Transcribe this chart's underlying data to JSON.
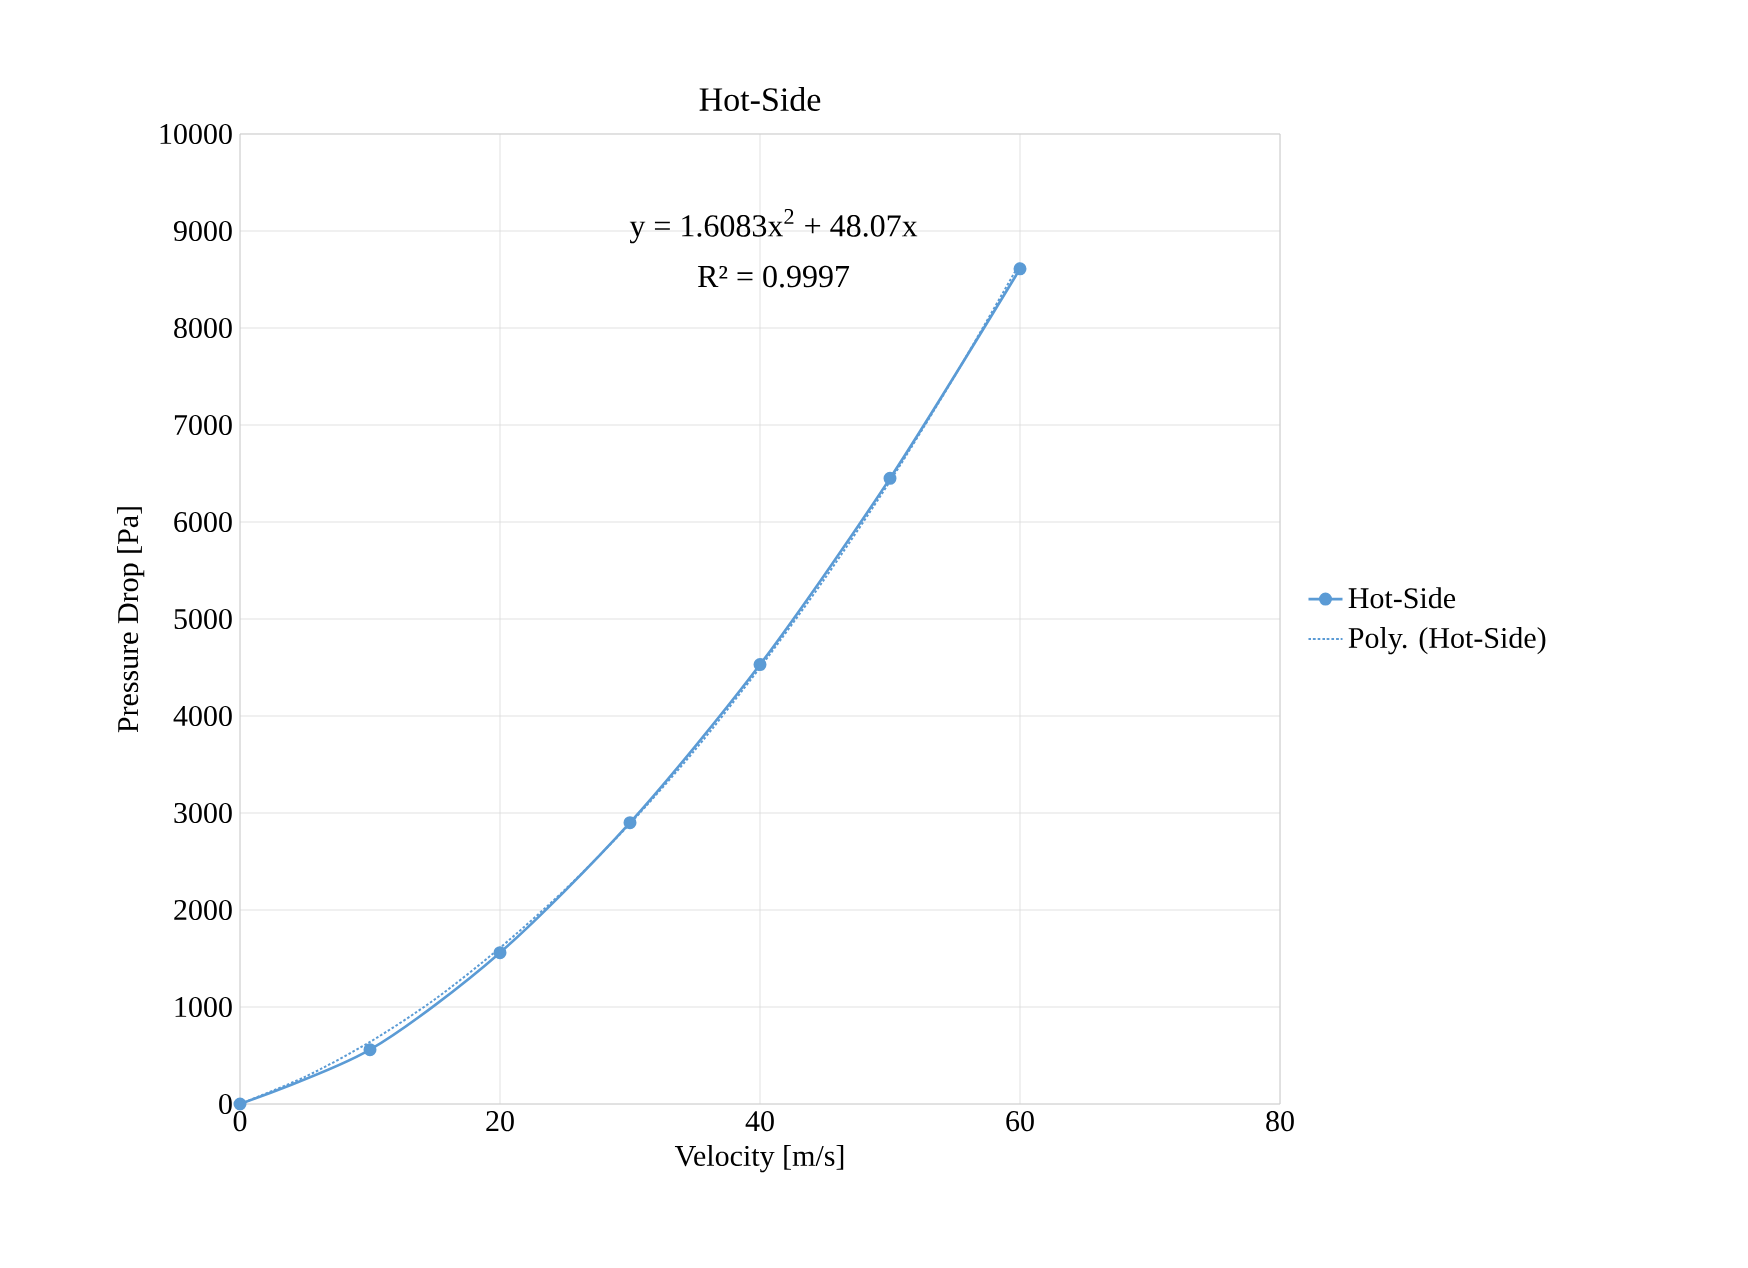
{
  "chart_data": {
    "type": "line",
    "title": "Hot-Side",
    "xlabel": "Velocity [m/s]",
    "ylabel": "Pressure Drop [Pa]",
    "xlim": [
      0,
      80
    ],
    "xticks": [
      0,
      20,
      40,
      60,
      80
    ],
    "ylim": [
      0,
      10000
    ],
    "yticks": [
      0,
      1000,
      2000,
      3000,
      4000,
      5000,
      6000,
      7000,
      8000,
      9000,
      10000
    ],
    "grid": true,
    "legend": "right",
    "annotations": [
      "y = 1.6083x$^{2}$ + 48.07x",
      "R² = 0.9997"
    ],
    "series": [
      {
        "name": "Hot-Side",
        "color": "#5b9bd5",
        "marker": "circle",
        "line_style": "solid",
        "x": [
          0,
          10,
          20,
          30,
          40,
          50,
          60
        ],
        "values": [
          0,
          560,
          1560,
          2900,
          4530,
          6450,
          8610
        ]
      },
      {
        "name": "Poly. (Hot-Side)",
        "color": "#5b9bd5",
        "marker": "none",
        "line_style": "dotted",
        "x": [
          0,
          5,
          10,
          15,
          20,
          25,
          30,
          35,
          40,
          45,
          50,
          55,
          60
        ],
        "values": [
          0,
          280,
          640,
          1080,
          1610,
          2210,
          2890,
          3650,
          4500,
          5420,
          6420,
          7510,
          8670
        ]
      }
    ]
  }
}
